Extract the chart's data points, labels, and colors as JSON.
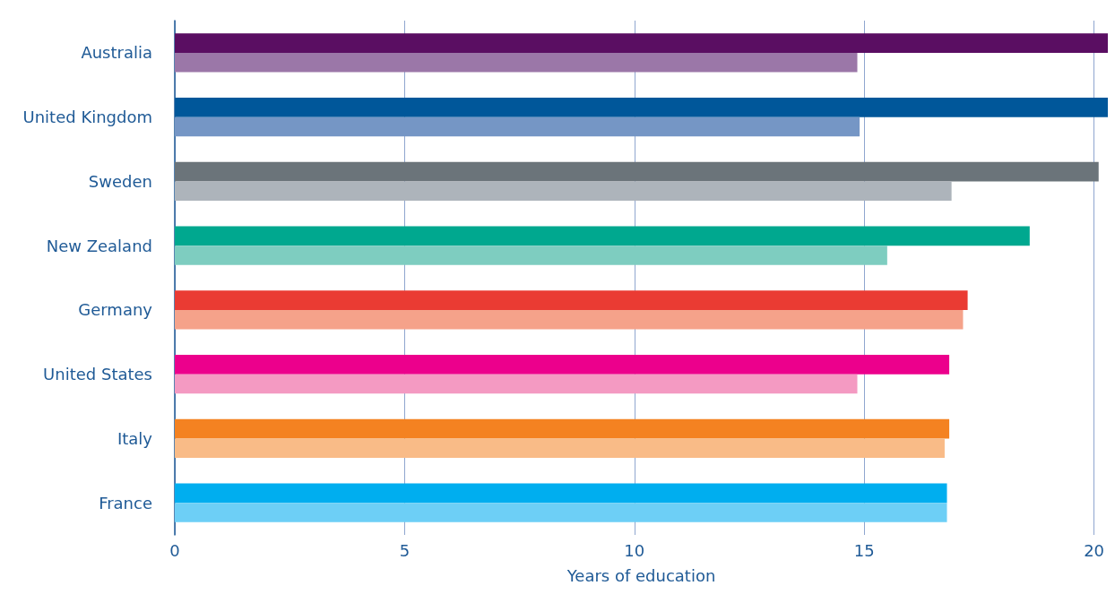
{
  "chart_data": {
    "type": "bar",
    "orientation": "horizontal",
    "xlabel": "Years of education",
    "categories": [
      "Australia",
      "United Kingdom",
      "Sweden",
      "New Zealand",
      "Germany",
      "United States",
      "Italy",
      "France"
    ],
    "series": [
      {
        "colors": [
          "#5a0e62",
          "#00579a",
          "#6b747a",
          "#00a88f",
          "#ea3b33",
          "#ec008c",
          "#f48221",
          "#00aeef"
        ],
        "values": [
          20.3,
          20.3,
          20.1,
          18.6,
          17.25,
          16.85,
          16.85,
          16.8
        ]
      },
      {
        "colors": [
          "#9b77a8",
          "#7596c5",
          "#adb4bb",
          "#7ecdc0",
          "#f5a28a",
          "#f49ac2",
          "#f9bb87",
          "#6dcff6"
        ],
        "values": [
          14.85,
          14.9,
          16.9,
          15.5,
          17.15,
          14.85,
          16.75,
          16.8
        ]
      }
    ],
    "xlim": [
      0,
      20.3
    ],
    "xticks": [
      0,
      5,
      10,
      15,
      20
    ],
    "grid": "x"
  }
}
